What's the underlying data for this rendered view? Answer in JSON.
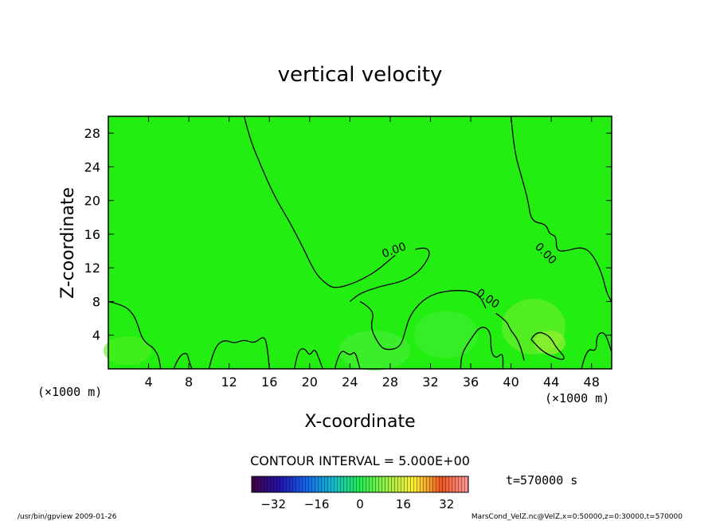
{
  "chart_data": {
    "type": "heatmap",
    "title": "vertical velocity",
    "xlabel": "X-coordinate",
    "ylabel": "Z-coordinate",
    "x_unit_left": "(×1000 m)",
    "x_unit_right": "(×1000 m)",
    "y_unit": "(×1000 m)",
    "xlim": [
      0,
      50
    ],
    "ylim": [
      0,
      30
    ],
    "x_ticks": [
      4,
      8,
      12,
      16,
      20,
      24,
      28,
      32,
      36,
      40,
      44,
      48
    ],
    "y_ticks": [
      4,
      8,
      12,
      16,
      20,
      24,
      28
    ],
    "background_color": "#22ee11",
    "contour_level_labels": [
      {
        "text": "0.00",
        "x": 28.5,
        "z": 13.7,
        "angle": -20
      },
      {
        "text": "0.00",
        "x": 37.5,
        "z": 8.0,
        "angle": 35
      },
      {
        "text": "0.00",
        "x": 43.2,
        "z": 13.4,
        "angle": 45
      }
    ],
    "contours": [
      [
        [
          13.5,
          30
        ],
        [
          14.0,
          27.5
        ],
        [
          15.2,
          24.0
        ],
        [
          16.5,
          20.5
        ],
        [
          18.0,
          17.5
        ],
        [
          19.3,
          14.5
        ],
        [
          20.5,
          11.5
        ],
        [
          21.5,
          10.2
        ],
        [
          22.5,
          9.5
        ],
        [
          24.5,
          10.2
        ],
        [
          26.5,
          11.5
        ],
        [
          27.8,
          12.8
        ],
        [
          28.5,
          13.5
        ]
      ],
      [
        [
          30.5,
          14.2
        ],
        [
          31.5,
          14.5
        ],
        [
          32.0,
          13.8
        ],
        [
          31.5,
          12.5
        ],
        [
          30.5,
          11.2
        ],
        [
          29.0,
          10.3
        ],
        [
          27.0,
          9.8
        ],
        [
          25.0,
          9.0
        ],
        [
          24.0,
          8.0
        ]
      ],
      [
        [
          40.0,
          30
        ],
        [
          40.3,
          26.0
        ],
        [
          41.0,
          23.0
        ],
        [
          41.7,
          20.0
        ],
        [
          42.0,
          17.5
        ],
        [
          43.5,
          17.2
        ],
        [
          43.8,
          16.0
        ],
        [
          44.5,
          15.8
        ],
        [
          44.5,
          14.0
        ],
        [
          45.5,
          14.0
        ],
        [
          47.0,
          14.5
        ],
        [
          48.0,
          13.8
        ],
        [
          49.0,
          11.5
        ],
        [
          49.5,
          9.0
        ],
        [
          50,
          8.0
        ]
      ],
      [
        [
          0,
          8.0
        ],
        [
          1.5,
          7.6
        ],
        [
          2.5,
          6.5
        ],
        [
          3.0,
          5.0
        ],
        [
          3.3,
          3.8
        ],
        [
          3.8,
          3.0
        ],
        [
          4.5,
          2.5
        ],
        [
          5.0,
          1.5
        ],
        [
          5.2,
          0
        ]
      ],
      [
        [
          25.0,
          8.0
        ],
        [
          26.5,
          7.0
        ],
        [
          26.0,
          5.0
        ],
        [
          26.8,
          3.0
        ],
        [
          27.5,
          2.2
        ],
        [
          29.0,
          2.5
        ],
        [
          29.5,
          4.5
        ],
        [
          30.0,
          6.5
        ],
        [
          31.5,
          8.5
        ],
        [
          33.5,
          9.3
        ],
        [
          36.0,
          9.3
        ],
        [
          37.0,
          8.5
        ],
        [
          37.5,
          7.2
        ]
      ],
      [
        [
          38.5,
          6.6
        ],
        [
          39.5,
          5.8
        ],
        [
          40.0,
          4.5
        ],
        [
          40.5,
          3.8
        ],
        [
          41.0,
          2.5
        ],
        [
          41.3,
          1.0
        ]
      ],
      [
        [
          35.0,
          0
        ],
        [
          35.0,
          1.5
        ],
        [
          35.8,
          3.2
        ],
        [
          37.0,
          5.2
        ],
        [
          38.0,
          4.5
        ],
        [
          38.0,
          2.0
        ],
        [
          38.5,
          1.2
        ],
        [
          39.2,
          2.0
        ],
        [
          39.2,
          0
        ]
      ],
      [
        [
          6.5,
          0
        ],
        [
          7.0,
          1.5
        ],
        [
          7.8,
          2.0
        ],
        [
          8.0,
          1.0
        ],
        [
          8.3,
          0
        ]
      ],
      [
        [
          10.0,
          0
        ],
        [
          10.5,
          2.5
        ],
        [
          11.5,
          3.5
        ],
        [
          12.5,
          3.0
        ],
        [
          13.5,
          3.5
        ],
        [
          14.5,
          3.0
        ],
        [
          15.5,
          4.0
        ],
        [
          15.8,
          2.5
        ],
        [
          16.0,
          0
        ]
      ],
      [
        [
          18.5,
          0
        ],
        [
          18.8,
          2.2
        ],
        [
          19.5,
          2.5
        ],
        [
          20.0,
          1.5
        ],
        [
          20.5,
          2.5
        ],
        [
          21.0,
          1.0
        ],
        [
          21.3,
          0
        ]
      ],
      [
        [
          22.5,
          0
        ],
        [
          23.0,
          2.5
        ],
        [
          24.0,
          1.5
        ],
        [
          24.5,
          2.2
        ],
        [
          25.0,
          0
        ]
      ],
      [
        [
          47.0,
          0
        ],
        [
          47.5,
          2.5
        ],
        [
          48.5,
          2.0
        ],
        [
          48.5,
          4.0
        ],
        [
          49.3,
          4.5
        ],
        [
          50,
          2.0
        ]
      ],
      [
        [
          42.0,
          3.5
        ],
        [
          42.5,
          4.5
        ],
        [
          43.8,
          4.0
        ],
        [
          44.5,
          2.5
        ],
        [
          45.3,
          1.5
        ],
        [
          45.2,
          1.0
        ],
        [
          44.0,
          1.5
        ],
        [
          43.0,
          2.2
        ],
        [
          42.0,
          3.5
        ]
      ]
    ],
    "colorbar": {
      "title": "CONTOUR INTERVAL = 5.000E+00",
      "tick_labels": [
        "−32",
        "−16",
        "0",
        "16",
        "32"
      ],
      "tick_values": [
        -32,
        -16,
        0,
        16,
        32
      ],
      "range": [
        -40,
        40
      ],
      "colors": [
        "#440044",
        "#2211aa",
        "#1166ee",
        "#11bbcc",
        "#22ee55",
        "#99ee44",
        "#ffee33",
        "#ee5522",
        "#ff9999"
      ]
    },
    "time_label": "t=570000 s"
  },
  "footer": {
    "left": "/usr/bin/gpview  2009-01-26",
    "right": "MarsCond_VelZ.nc@VelZ,x=0:50000,z=0:30000,t=570000"
  }
}
